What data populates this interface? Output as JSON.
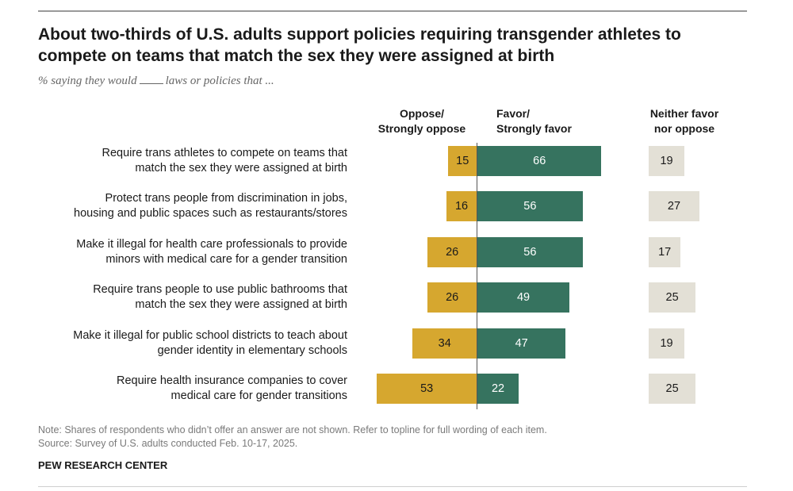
{
  "title": "About two-thirds of U.S. adults support policies requiring transgender athletes to compete on teams that match the sex they were assigned at birth",
  "subtitle_before": "% saying they would",
  "subtitle_after": "laws or policies that ...",
  "chart_data": {
    "type": "bar",
    "orientation": "horizontal-diverging",
    "series_headers": {
      "oppose": [
        "Oppose/",
        "Strongly oppose"
      ],
      "favor": [
        "Favor/",
        "Strongly favor"
      ],
      "neither": [
        "Neither favor",
        "nor oppose"
      ]
    },
    "categories": [
      [
        "Require trans athletes to compete on teams that",
        "match the sex they were assigned at birth"
      ],
      [
        "Protect trans people from discrimination in jobs,",
        "housing and public spaces such as restaurants/stores"
      ],
      [
        "Make it illegal for health care professionals to provide",
        "minors with medical care for a gender transition"
      ],
      [
        "Require trans people to use public bathrooms that",
        "match the sex they were assigned at birth"
      ],
      [
        "Make it illegal for public school districts to teach about",
        "gender identity in elementary schools"
      ],
      [
        "Require health insurance companies to cover",
        "medical care for gender transitions"
      ]
    ],
    "series": [
      {
        "name": "Oppose/Strongly oppose",
        "color": "#d6a72f",
        "values": [
          15,
          16,
          26,
          26,
          34,
          53
        ]
      },
      {
        "name": "Favor/Strongly favor",
        "color": "#36735f",
        "values": [
          66,
          56,
          56,
          49,
          47,
          22
        ]
      },
      {
        "name": "Neither favor nor oppose",
        "color": "#e3e0d6",
        "values": [
          19,
          27,
          17,
          25,
          19,
          25
        ]
      }
    ]
  },
  "note": "Note: Shares of respondents who didn’t offer an answer are not shown. Refer to topline for full wording of each item.",
  "source": "Source: Survey of U.S. adults conducted Feb. 10-17, 2025.",
  "brand": "PEW RESEARCH CENTER"
}
